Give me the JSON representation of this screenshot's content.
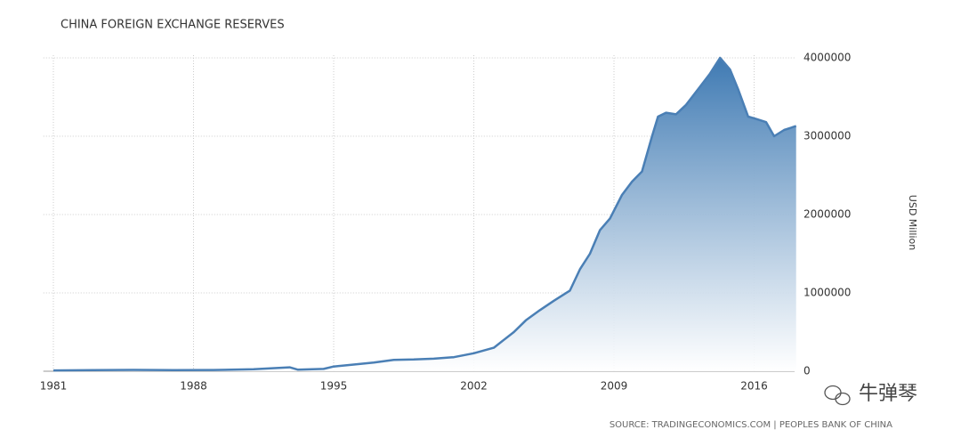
{
  "chart_data": {
    "type": "area",
    "title": "CHINA FOREIGN EXCHANGE RESERVES",
    "y_label": "USD Million",
    "source": "SOURCE: TRADINGECONOMICS.COM | PEOPLES BANK OF CHINA",
    "watermark": "牛弹琴",
    "x": [
      1981,
      1983,
      1985,
      1987,
      1989,
      1991,
      1992.8,
      1993.2,
      1994.5,
      1995,
      1996,
      1997,
      1998,
      1999,
      2000,
      2001,
      2002,
      2003,
      2003.5,
      2004,
      2004.6,
      2005.3,
      2006,
      2006.8,
      2007.3,
      2007.8,
      2008.3,
      2008.8,
      2009.4,
      2009.9,
      2010.4,
      2010.9,
      2011.2,
      2011.6,
      2012.1,
      2012.6,
      2013.2,
      2013.8,
      2014.3,
      2014.8,
      2015.2,
      2015.7,
      2016.1,
      2016.6,
      2017,
      2017.5,
      2018.1
    ],
    "series": [
      {
        "name": "Foreign Exchange Reserves",
        "color": "#4a7fb5",
        "values": [
          10000,
          15000,
          17000,
          15000,
          16000,
          25000,
          50000,
          20000,
          30000,
          60000,
          85000,
          110000,
          145000,
          150000,
          160000,
          180000,
          230000,
          300000,
          400000,
          500000,
          650000,
          780000,
          900000,
          1030000,
          1300000,
          1500000,
          1800000,
          1950000,
          2250000,
          2420000,
          2550000,
          3000000,
          3250000,
          3300000,
          3280000,
          3400000,
          3600000,
          3800000,
          4000000,
          3850000,
          3600000,
          3250000,
          3220000,
          3180000,
          3000000,
          3080000,
          3130000
        ]
      }
    ],
    "xlim": [
      1980.5,
      2018.2
    ],
    "xticks": [
      1981,
      1988,
      1995,
      2002,
      2009,
      2016
    ],
    "ylim": [
      0,
      4000000
    ],
    "yticks": [
      0,
      1000000,
      2000000,
      3000000,
      4000000
    ],
    "grid": true
  }
}
